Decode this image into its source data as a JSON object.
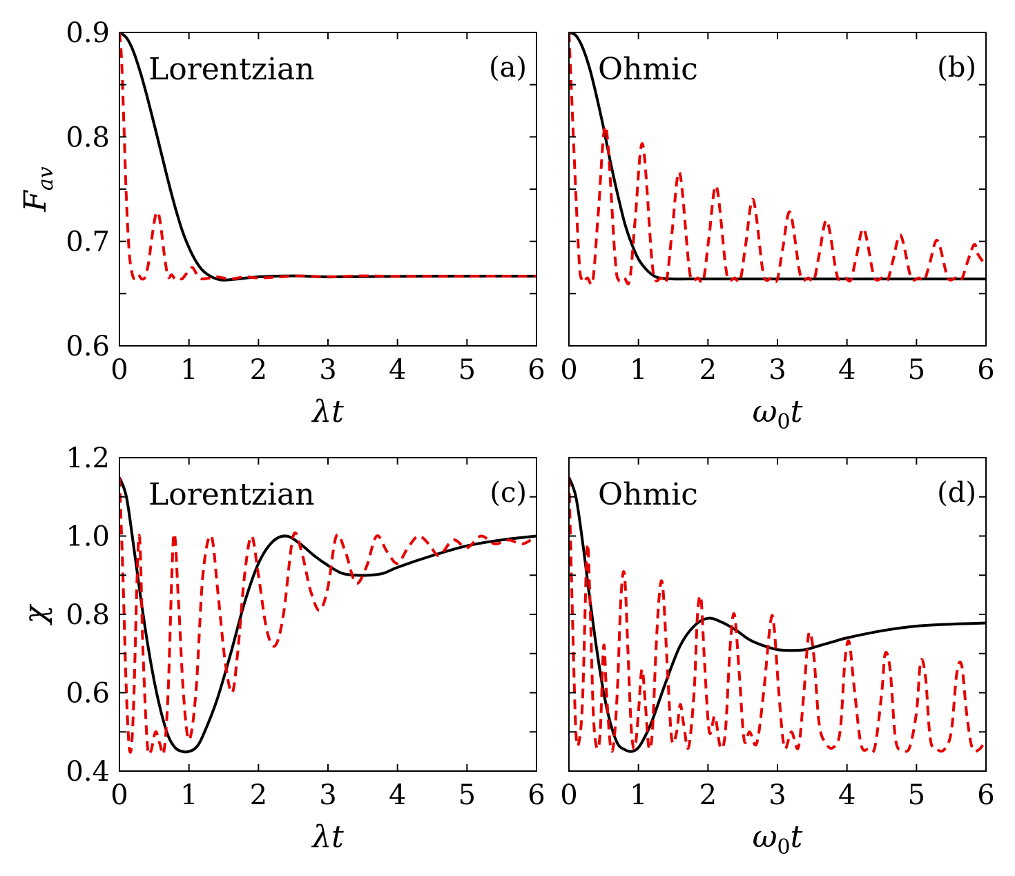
{
  "colors": {
    "solid": "#000000",
    "dashed": "#e60000",
    "frame": "#000000"
  },
  "chart_data": [
    {
      "id": "a",
      "type": "line",
      "tag": "(a)",
      "name": "Lorentzian",
      "xlabel_base": "λ",
      "xlabel_t": "t",
      "ylabel": "F",
      "ylabel_sub": "av",
      "xlim": [
        0,
        6
      ],
      "ylim": [
        0.6,
        0.9
      ],
      "xticks": [
        0,
        1,
        2,
        3,
        4,
        5,
        6
      ],
      "yticks": [
        0.6,
        0.7,
        0.8,
        0.9
      ],
      "ytick_labels": [
        "0.6",
        "0.7",
        "0.8",
        "0.9"
      ],
      "series": [
        {
          "name": "solid",
          "style": "solid",
          "x": [
            0,
            0.1,
            0.2,
            0.3,
            0.4,
            0.5,
            0.6,
            0.7,
            0.8,
            0.9,
            1.0,
            1.1,
            1.2,
            1.3,
            1.4,
            1.5,
            1.7,
            2.0,
            2.5,
            3.0,
            4.0,
            5.0,
            6.0
          ],
          "y": [
            0.9,
            0.895,
            0.882,
            0.862,
            0.838,
            0.812,
            0.785,
            0.758,
            0.733,
            0.711,
            0.694,
            0.681,
            0.672,
            0.667,
            0.664,
            0.663,
            0.664,
            0.666,
            0.667,
            0.666,
            0.6665,
            0.6667,
            0.6667
          ]
        },
        {
          "name": "dashed",
          "style": "dashed",
          "x": [
            0,
            0.03,
            0.06,
            0.1,
            0.14,
            0.18,
            0.22,
            0.27,
            0.32,
            0.37,
            0.42,
            0.47,
            0.52,
            0.56,
            0.6,
            0.65,
            0.7,
            0.75,
            0.8,
            0.85,
            0.9,
            0.95,
            1.0,
            1.05,
            1.1,
            1.15,
            1.2,
            1.3,
            1.4,
            1.6,
            1.8,
            2.0,
            2.3,
            2.6,
            3.0,
            3.5,
            4.0,
            5.0,
            6.0
          ],
          "y": [
            0.9,
            0.875,
            0.82,
            0.74,
            0.69,
            0.67,
            0.664,
            0.668,
            0.664,
            0.666,
            0.68,
            0.705,
            0.725,
            0.727,
            0.712,
            0.685,
            0.666,
            0.668,
            0.664,
            0.665,
            0.664,
            0.668,
            0.672,
            0.675,
            0.67,
            0.665,
            0.664,
            0.665,
            0.666,
            0.664,
            0.666,
            0.665,
            0.666,
            0.667,
            0.666,
            0.667,
            0.6665,
            0.6667,
            0.6667
          ]
        }
      ]
    },
    {
      "id": "b",
      "type": "line",
      "tag": "(b)",
      "name": "Ohmic",
      "xlabel_base": "ω",
      "xlabel_sub": "0",
      "xlabel_t": "t",
      "xlim": [
        0,
        6
      ],
      "ylim": [
        0.6,
        0.9
      ],
      "xticks": [
        0,
        1,
        2,
        3,
        4,
        5,
        6
      ],
      "yticks": [
        0.6,
        0.7,
        0.8,
        0.9
      ],
      "series": [
        {
          "name": "solid",
          "style": "solid",
          "x": [
            0,
            0.1,
            0.2,
            0.3,
            0.4,
            0.5,
            0.6,
            0.7,
            0.8,
            0.9,
            1.0,
            1.1,
            1.2,
            1.3,
            1.5,
            1.8,
            2.0,
            3.0,
            4.0,
            5.0,
            6.0
          ],
          "y": [
            0.9,
            0.897,
            0.885,
            0.865,
            0.838,
            0.808,
            0.775,
            0.745,
            0.718,
            0.698,
            0.683,
            0.674,
            0.668,
            0.665,
            0.664,
            0.664,
            0.664,
            0.664,
            0.664,
            0.664,
            0.664
          ]
        },
        {
          "name": "dashed",
          "style": "dashed",
          "peaks_x": [
            0,
            0.53,
            1.06,
            1.59,
            2.12,
            2.65,
            3.18,
            3.71,
            4.24,
            4.77,
            5.3,
            5.83
          ],
          "peaks_y": [
            0.9,
            0.81,
            0.793,
            0.766,
            0.753,
            0.74,
            0.728,
            0.72,
            0.712,
            0.706,
            0.701,
            0.697
          ],
          "trough_y": 0.663,
          "period": 0.53,
          "x_end": 6.0,
          "y_end": 0.677
        }
      ]
    },
    {
      "id": "c",
      "type": "line",
      "tag": "(c)",
      "name": "Lorentzian",
      "xlabel_base": "λ",
      "xlabel_t": "t",
      "ylabel": "χ",
      "xlim": [
        0,
        6
      ],
      "ylim": [
        0.4,
        1.2
      ],
      "xticks": [
        0,
        1,
        2,
        3,
        4,
        5,
        6
      ],
      "yticks": [
        0.4,
        0.6,
        0.8,
        1.0,
        1.2
      ],
      "ytick_labels": [
        "0.4",
        "0.6",
        "0.8",
        "1.0",
        "1.2"
      ],
      "series": [
        {
          "name": "solid",
          "style": "solid",
          "x": [
            0,
            0.1,
            0.2,
            0.3,
            0.4,
            0.5,
            0.6,
            0.7,
            0.8,
            0.9,
            1.0,
            1.1,
            1.2,
            1.4,
            1.6,
            1.8,
            2.0,
            2.2,
            2.4,
            2.6,
            2.8,
            3.0,
            3.2,
            3.4,
            3.6,
            3.8,
            4.0,
            4.5,
            5.0,
            5.5,
            6.0
          ],
          "y": [
            1.15,
            1.1,
            0.98,
            0.85,
            0.73,
            0.63,
            0.55,
            0.49,
            0.46,
            0.45,
            0.45,
            0.46,
            0.49,
            0.58,
            0.7,
            0.83,
            0.93,
            0.985,
            1.0,
            0.98,
            0.95,
            0.925,
            0.905,
            0.9,
            0.9,
            0.905,
            0.92,
            0.95,
            0.975,
            0.99,
            1.0
          ]
        },
        {
          "name": "dashed",
          "style": "dashed",
          "x": [
            0,
            0.05,
            0.1,
            0.15,
            0.2,
            0.28,
            0.34,
            0.4,
            0.45,
            0.52,
            0.58,
            0.64,
            0.7,
            0.78,
            0.85,
            0.92,
            1.0,
            1.1,
            1.2,
            1.32,
            1.42,
            1.52,
            1.62,
            1.7,
            1.8,
            1.9,
            2.0,
            2.12,
            2.24,
            2.36,
            2.5,
            2.62,
            2.75,
            2.88,
            3.0,
            3.12,
            3.25,
            3.4,
            3.55,
            3.7,
            3.85,
            4.0,
            4.15,
            4.3,
            4.45,
            4.6,
            4.8,
            5.0,
            5.2,
            5.4,
            5.6,
            5.8,
            6.0
          ],
          "y": [
            1.15,
            0.9,
            0.6,
            0.45,
            0.55,
            1.0,
            0.7,
            0.47,
            0.45,
            0.5,
            0.47,
            0.45,
            0.6,
            1.0,
            0.83,
            0.6,
            0.48,
            0.6,
            0.9,
            1.0,
            0.85,
            0.68,
            0.6,
            0.7,
            0.9,
            1.0,
            0.9,
            0.76,
            0.72,
            0.8,
            1.0,
            0.96,
            0.86,
            0.81,
            0.87,
            1.0,
            0.96,
            0.88,
            0.92,
            1.0,
            0.96,
            0.93,
            0.97,
            1.0,
            0.98,
            0.95,
            0.99,
            0.97,
            1.0,
            0.98,
            0.99,
            0.98,
            1.0
          ]
        }
      ]
    },
    {
      "id": "d",
      "type": "line",
      "tag": "(d)",
      "name": "Ohmic",
      "xlabel_base": "ω",
      "xlabel_sub": "0",
      "xlabel_t": "t",
      "xlim": [
        0,
        6
      ],
      "ylim": [
        0.4,
        1.2
      ],
      "xticks": [
        0,
        1,
        2,
        3,
        4,
        5,
        6
      ],
      "yticks": [
        0.4,
        0.6,
        0.8,
        1.0,
        1.2
      ],
      "series": [
        {
          "name": "solid",
          "style": "solid",
          "x": [
            0,
            0.1,
            0.2,
            0.3,
            0.4,
            0.5,
            0.6,
            0.7,
            0.8,
            0.9,
            1.0,
            1.1,
            1.2,
            1.4,
            1.6,
            1.8,
            2.0,
            2.2,
            2.4,
            2.6,
            2.8,
            3.0,
            3.2,
            3.4,
            3.6,
            3.8,
            4.0,
            4.5,
            5.0,
            5.5,
            6.0
          ],
          "y": [
            1.15,
            1.1,
            0.98,
            0.84,
            0.71,
            0.6,
            0.52,
            0.47,
            0.455,
            0.45,
            0.46,
            0.49,
            0.53,
            0.63,
            0.72,
            0.77,
            0.79,
            0.78,
            0.76,
            0.735,
            0.72,
            0.71,
            0.708,
            0.71,
            0.72,
            0.73,
            0.74,
            0.758,
            0.77,
            0.775,
            0.778
          ]
        },
        {
          "name": "dashed",
          "style": "dashed",
          "x": [
            0,
            0.05,
            0.1,
            0.15,
            0.2,
            0.26,
            0.3,
            0.35,
            0.4,
            0.45,
            0.5,
            0.54,
            0.6,
            0.65,
            0.7,
            0.75,
            0.8,
            0.85,
            0.9,
            0.95,
            1.0,
            1.05,
            1.1,
            1.15,
            1.2,
            1.25,
            1.3,
            1.35,
            1.42,
            1.48,
            1.55,
            1.6,
            1.65,
            1.72,
            1.8,
            1.85,
            1.9,
            1.95,
            2.02,
            2.1,
            2.18,
            2.25,
            2.32,
            2.38,
            2.45,
            2.52,
            2.6,
            2.7,
            2.8,
            2.9,
            2.95,
            3.02,
            3.1,
            3.2,
            3.3,
            3.38,
            3.45,
            3.52,
            3.6,
            3.7,
            3.8,
            3.9,
            3.97,
            4.03,
            4.1,
            4.2,
            4.3,
            4.4,
            4.5,
            4.55,
            4.62,
            4.7,
            4.8,
            4.9,
            5.0,
            5.06,
            5.13,
            5.2,
            5.3,
            5.4,
            5.5,
            5.58,
            5.65,
            5.72,
            5.8,
            5.9,
            6.0
          ],
          "y": [
            1.15,
            0.8,
            0.5,
            0.48,
            0.6,
            0.97,
            0.85,
            0.55,
            0.46,
            0.5,
            0.72,
            0.6,
            0.46,
            0.48,
            0.62,
            0.85,
            0.9,
            0.7,
            0.5,
            0.46,
            0.55,
            0.66,
            0.57,
            0.46,
            0.5,
            0.7,
            0.85,
            0.87,
            0.65,
            0.48,
            0.5,
            0.57,
            0.52,
            0.46,
            0.6,
            0.8,
            0.84,
            0.68,
            0.5,
            0.54,
            0.46,
            0.5,
            0.72,
            0.8,
            0.65,
            0.48,
            0.5,
            0.47,
            0.6,
            0.78,
            0.77,
            0.6,
            0.46,
            0.5,
            0.46,
            0.6,
            0.75,
            0.7,
            0.52,
            0.47,
            0.46,
            0.5,
            0.68,
            0.73,
            0.62,
            0.47,
            0.455,
            0.46,
            0.6,
            0.7,
            0.66,
            0.48,
            0.455,
            0.46,
            0.55,
            0.68,
            0.64,
            0.48,
            0.455,
            0.455,
            0.5,
            0.65,
            0.67,
            0.55,
            0.46,
            0.455,
            0.48
          ]
        }
      ]
    }
  ]
}
